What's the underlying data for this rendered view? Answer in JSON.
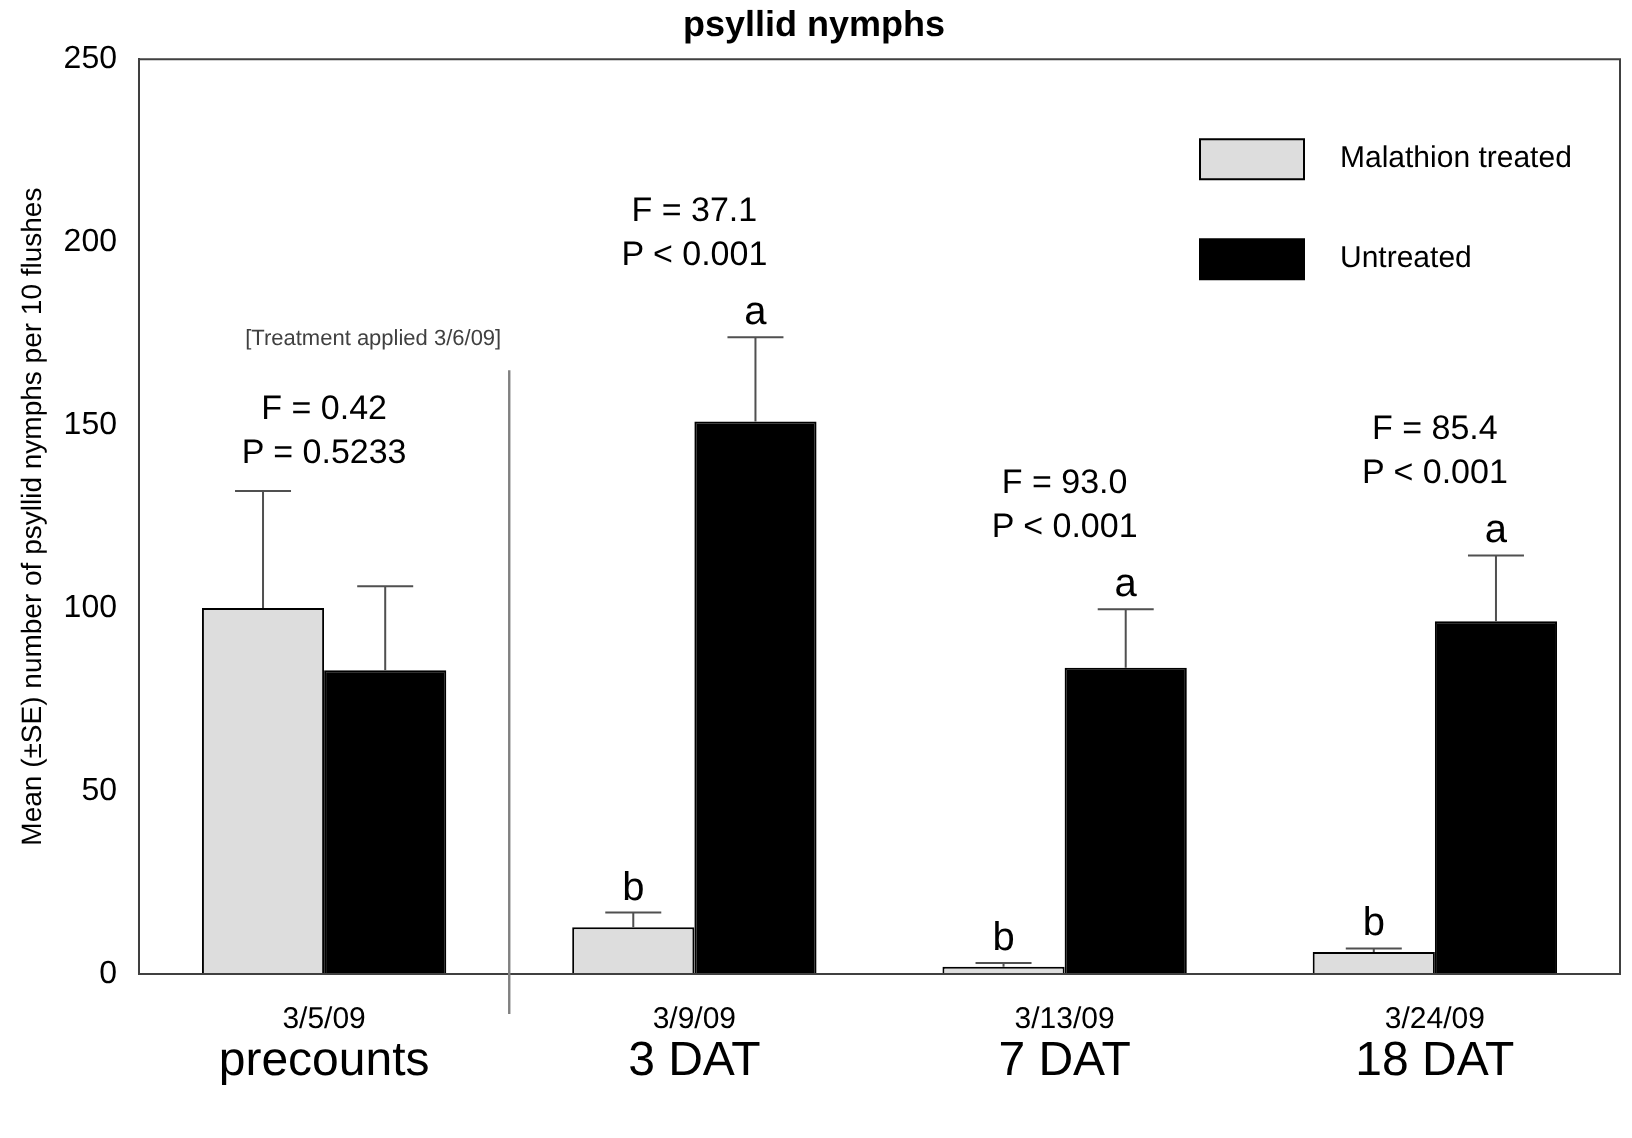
{
  "chart_data": {
    "type": "bar",
    "title": "psyllid nymphs",
    "ylabel": "Mean (±SE) number of psyllid nymphs per 10 flushes",
    "categories": [
      "3/5/09",
      "3/9/09",
      "3/13/09",
      "3/24/09"
    ],
    "series": [
      {
        "name": "Malathion treated",
        "color": "#dddddd",
        "values": [
          100,
          12.8,
          2,
          6
        ],
        "errors": [
          32,
          4,
          1,
          1
        ],
        "value_labels": [
          null,
          "b",
          "b",
          "b"
        ]
      },
      {
        "name": "Untreated",
        "color": "#000000",
        "values": [
          83,
          151,
          83.7,
          96.4
        ],
        "errors": [
          23,
          23,
          16,
          18
        ],
        "value_labels": [
          null,
          "a",
          "a",
          "a"
        ]
      }
    ],
    "ylim": [
      0,
      250
    ],
    "yticks": [
      0,
      50,
      100,
      150,
      200,
      250
    ],
    "grid": false,
    "legend": "top right",
    "annotations": [
      "F = 0.42\nP = 0.5233",
      "F = 37.1\nP < 0.001",
      "F = 93.0\nP < 0.001",
      "F = 85.4\nP < 0.001",
      "precounts",
      "3 DAT",
      "7 DAT",
      "18 DAT",
      "[Treatment applied 3/6/09]"
    ]
  }
}
